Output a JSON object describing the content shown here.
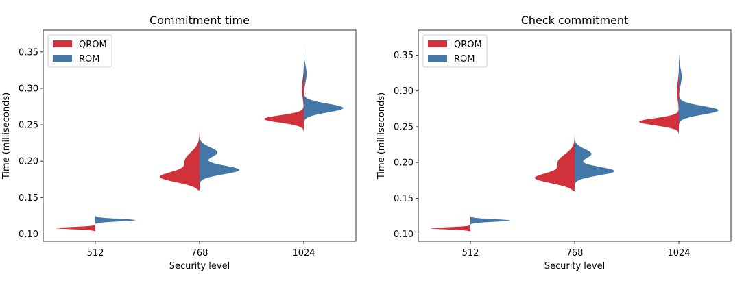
{
  "chart_data": [
    {
      "type": "violin",
      "title": "Commitment time",
      "xlabel": "Security level",
      "ylabel": "Time (milliseconds)",
      "categories": [
        "512",
        "768",
        "1024"
      ],
      "ylim": [
        0.09,
        0.38
      ],
      "yticks": [
        0.1,
        0.15,
        0.2,
        0.25,
        0.3,
        0.35
      ],
      "yticklabels": [
        "0.10",
        "0.15",
        "0.20",
        "0.25",
        "0.30",
        "0.35"
      ],
      "legend": {
        "position": "upper-left"
      },
      "series": [
        {
          "name": "QROM",
          "side": "left",
          "color": "#d1313a",
          "distributions": [
            {
              "category": "512",
              "min": 0.104,
              "max": 0.112,
              "modes": [
                [
                  0.108,
                  1.0,
                  0.0015
                ]
              ]
            },
            {
              "category": "768",
              "min": 0.16,
              "max": 0.252,
              "modes": [
                [
                  0.178,
                  1.0,
                  0.007
                ],
                [
                  0.2,
                  0.4,
                  0.012
                ]
              ]
            },
            {
              "category": "1024",
              "min": 0.241,
              "max": 0.33,
              "modes": [
                [
                  0.258,
                  1.0,
                  0.005
                ],
                [
                  0.3,
                  0.05,
                  0.012
                ]
              ]
            }
          ]
        },
        {
          "name": "ROM",
          "side": "right",
          "color": "#4377a7",
          "distributions": [
            {
              "category": "512",
              "min": 0.114,
              "max": 0.126,
              "modes": [
                [
                  0.119,
                  1.0,
                  0.0018
                ]
              ]
            },
            {
              "category": "768",
              "min": 0.164,
              "max": 0.24,
              "modes": [
                [
                  0.188,
                  1.0,
                  0.006
                ],
                [
                  0.212,
                  0.45,
                  0.007
                ]
              ]
            },
            {
              "category": "1024",
              "min": 0.245,
              "max": 0.37,
              "modes": [
                [
                  0.273,
                  1.0,
                  0.006
                ],
                [
                  0.32,
                  0.07,
                  0.012
                ]
              ]
            }
          ]
        }
      ]
    },
    {
      "type": "violin",
      "title": "Check commitment",
      "xlabel": "Security level",
      "ylabel": "Time (milliseconds)",
      "categories": [
        "512",
        "768",
        "1024"
      ],
      "ylim": [
        0.09,
        0.385
      ],
      "yticks": [
        0.1,
        0.15,
        0.2,
        0.25,
        0.3,
        0.35
      ],
      "yticklabels": [
        "0.10",
        "0.15",
        "0.20",
        "0.25",
        "0.30",
        "0.35"
      ],
      "legend": {
        "position": "upper-left"
      },
      "series": [
        {
          "name": "QROM",
          "side": "left",
          "color": "#d1313a",
          "distributions": [
            {
              "category": "512",
              "min": 0.104,
              "max": 0.112,
              "modes": [
                [
                  0.108,
                  1.0,
                  0.0015
                ]
              ]
            },
            {
              "category": "768",
              "min": 0.16,
              "max": 0.256,
              "modes": [
                [
                  0.178,
                  1.0,
                  0.007
                ],
                [
                  0.2,
                  0.45,
                  0.011
                ]
              ]
            },
            {
              "category": "1024",
              "min": 0.24,
              "max": 0.335,
              "modes": [
                [
                  0.257,
                  1.0,
                  0.005
                ],
                [
                  0.3,
                  0.05,
                  0.012
                ]
              ]
            }
          ]
        },
        {
          "name": "ROM",
          "side": "right",
          "color": "#4377a7",
          "distributions": [
            {
              "category": "512",
              "min": 0.113,
              "max": 0.125,
              "modes": [
                [
                  0.119,
                  1.0,
                  0.0018
                ]
              ]
            },
            {
              "category": "768",
              "min": 0.164,
              "max": 0.246,
              "modes": [
                [
                  0.188,
                  1.0,
                  0.006
                ],
                [
                  0.212,
                  0.42,
                  0.007
                ]
              ]
            },
            {
              "category": "1024",
              "min": 0.245,
              "max": 0.378,
              "modes": [
                [
                  0.273,
                  1.0,
                  0.006
                ],
                [
                  0.32,
                  0.07,
                  0.012
                ]
              ]
            }
          ]
        }
      ]
    }
  ]
}
